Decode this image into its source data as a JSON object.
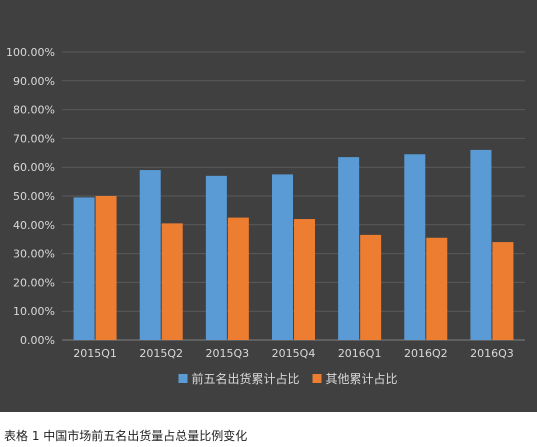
{
  "chart_data": {
    "type": "bar",
    "categories": [
      "2015Q1",
      "2015Q2",
      "2015Q3",
      "2015Q4",
      "2016Q1",
      "2016Q2",
      "2016Q3"
    ],
    "series": [
      {
        "name": "前五名出货累计占比",
        "values": [
          49.5,
          59.0,
          57.0,
          57.5,
          63.5,
          64.5,
          66.0
        ],
        "color": "#5b9bd5"
      },
      {
        "name": "其他累计占比",
        "values": [
          50.0,
          40.5,
          42.5,
          42.0,
          36.5,
          35.5,
          34.0
        ],
        "color": "#ed7d31"
      }
    ],
    "yticks": [
      "0.00%",
      "10.00%",
      "20.00%",
      "30.00%",
      "40.00%",
      "50.00%",
      "60.00%",
      "70.00%",
      "80.00%",
      "90.00%",
      "100.00%"
    ],
    "ylim": [
      0,
      100
    ],
    "grid": true,
    "legend_position": "bottom",
    "background": "#404040",
    "gridline_color": "#5a5a5a",
    "text_color": "#d9d9d9"
  },
  "caption": "表格 1 中国市场前五名出货量占总量比例变化"
}
